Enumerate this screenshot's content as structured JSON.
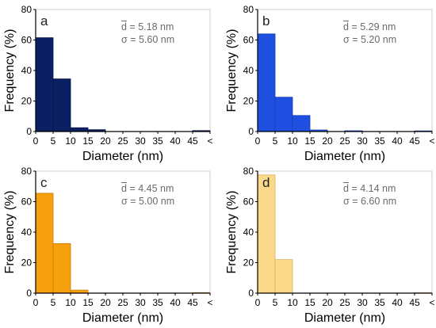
{
  "chart_data": [
    {
      "type": "bar",
      "panel_label": "a",
      "xlabel": "Diameter (nm)",
      "ylabel": "Frequency (%)",
      "categories": [
        "0-5",
        "5-10",
        "10-15",
        "15-20",
        "20-25",
        "25-30",
        "30-35",
        "35-40",
        "40-45",
        "45-<"
      ],
      "values": [
        61.5,
        34.5,
        2.5,
        1.2,
        0,
        0,
        0,
        0,
        0,
        0.6
      ],
      "xticks": [
        "0",
        "5",
        "10",
        "15",
        "20",
        "25",
        "30",
        "35",
        "40",
        "45",
        "<"
      ],
      "yticks": [
        "0",
        "20",
        "40",
        "60",
        "80"
      ],
      "ylim": [
        0,
        80
      ],
      "grid": false,
      "stats": {
        "mean": "d = 5.18 nm",
        "sigma": "σ = 5.60 nm"
      },
      "color": "#0b1f63",
      "edge_color": "#081546"
    },
    {
      "type": "bar",
      "panel_label": "b",
      "xlabel": "Diameter (nm)",
      "ylabel": "Frequency (%)",
      "categories": [
        "0-5",
        "5-10",
        "10-15",
        "15-20",
        "20-25",
        "25-30",
        "30-35",
        "35-40",
        "40-45",
        "45-<"
      ],
      "values": [
        64.0,
        22.5,
        10.5,
        1.0,
        0,
        0.5,
        0,
        0,
        0,
        0.4
      ],
      "xticks": [
        "0",
        "5",
        "10",
        "15",
        "20",
        "25",
        "30",
        "35",
        "40",
        "45",
        "<"
      ],
      "yticks": [
        "0",
        "20",
        "40",
        "60",
        "80"
      ],
      "ylim": [
        0,
        80
      ],
      "grid": false,
      "stats": {
        "mean": "d = 5.29 nm",
        "sigma": "σ = 5.20 nm"
      },
      "color": "#1f4fe0",
      "edge_color": "#163cb0"
    },
    {
      "type": "bar",
      "panel_label": "c",
      "xlabel": "Diameter (nm)",
      "ylabel": "Frequency (%)",
      "categories": [
        "0-5",
        "5-10",
        "10-15",
        "15-20",
        "20-25",
        "25-30",
        "30-35",
        "35-40",
        "40-45",
        "45-<"
      ],
      "values": [
        65.5,
        32.5,
        2.0,
        0,
        0,
        0,
        0,
        0,
        0,
        0.3
      ],
      "xticks": [
        "0",
        "5",
        "10",
        "15",
        "20",
        "25",
        "30",
        "35",
        "40",
        "45",
        "<"
      ],
      "yticks": [
        "0",
        "20",
        "40",
        "60",
        "80"
      ],
      "ylim": [
        0,
        80
      ],
      "grid": false,
      "stats": {
        "mean": "d = 4.45 nm",
        "sigma": "σ = 5.00 nm"
      },
      "color": "#f5a00c",
      "edge_color": "#c77f05"
    },
    {
      "type": "bar",
      "panel_label": "d",
      "xlabel": "Diameter (nm)",
      "ylabel": "Frequency (%)",
      "categories": [
        "0-5",
        "5-10",
        "10-15",
        "15-20",
        "20-25",
        "25-30",
        "30-35",
        "35-40",
        "40-45",
        "45-<"
      ],
      "values": [
        77.5,
        22.0,
        0,
        0,
        0,
        0,
        0,
        0,
        0,
        0.3
      ],
      "xticks": [
        "0",
        "5",
        "10",
        "15",
        "20",
        "25",
        "30",
        "35",
        "40",
        "45",
        "<"
      ],
      "yticks": [
        "0",
        "20",
        "40",
        "60",
        "80"
      ],
      "ylim": [
        0,
        80
      ],
      "grid": false,
      "stats": {
        "mean": "d = 4.14 nm",
        "sigma": "σ = 6.60 nm"
      },
      "color": "#fbd98a",
      "edge_color": "#d9b25e"
    }
  ]
}
